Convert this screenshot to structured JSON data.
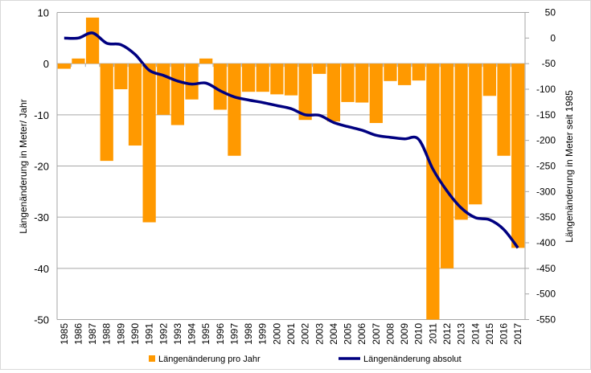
{
  "chart_data": {
    "type": "bar+line",
    "categories": [
      "1985",
      "1986",
      "1987",
      "1988",
      "1989",
      "1990",
      "1991",
      "1992",
      "1993",
      "1994",
      "1995",
      "1996",
      "1997",
      "1998",
      "1999",
      "2000",
      "2001",
      "2002",
      "2003",
      "2004",
      "2005",
      "2006",
      "2007",
      "2008",
      "2009",
      "2010",
      "2011",
      "2012",
      "2013",
      "2014",
      "2015",
      "2016",
      "2017"
    ],
    "series": [
      {
        "name": "Längenänderung pro Jahr",
        "type": "bar",
        "axis": "left",
        "color": "#FF9900",
        "values": [
          -1,
          1,
          9,
          -19,
          -5,
          -16,
          -31,
          -10,
          -12,
          -7,
          1,
          -9,
          -18,
          -5.5,
          -5.5,
          -6,
          -6.2,
          -11,
          -2,
          -11.3,
          -7.5,
          -7.6,
          -11.6,
          -3.4,
          -4.2,
          -3.3,
          -50,
          -40,
          -30.5,
          -27.5,
          -6.3,
          -18,
          -36
        ]
      },
      {
        "name": "Längenänderung absolut",
        "type": "line",
        "axis": "right",
        "color": "#000080",
        "values": [
          0,
          0,
          10,
          -10,
          -13,
          -32,
          -63,
          -73,
          -84,
          -90,
          -88,
          -103,
          -115,
          -121,
          -126,
          -132,
          -138,
          -150,
          -151,
          -165,
          -173,
          -180,
          -190,
          -194,
          -197,
          -198,
          -256,
          -299,
          -332,
          -351,
          -355,
          -374,
          -410
        ]
      }
    ],
    "ylabel": "Längenänderung in Meter/ Jahr",
    "y2label": "Längenänderung in Meter seit 1985",
    "ylim": [
      -50,
      10
    ],
    "y2lim": [
      -550,
      50
    ],
    "yticks": [
      10,
      0,
      -10,
      -20,
      -30,
      -40,
      -50
    ],
    "y2ticks": [
      50,
      0,
      -50,
      -100,
      -150,
      -200,
      -250,
      -300,
      -350,
      -400,
      -450,
      -500,
      -550
    ],
    "grid": true,
    "legend": "bottom"
  }
}
